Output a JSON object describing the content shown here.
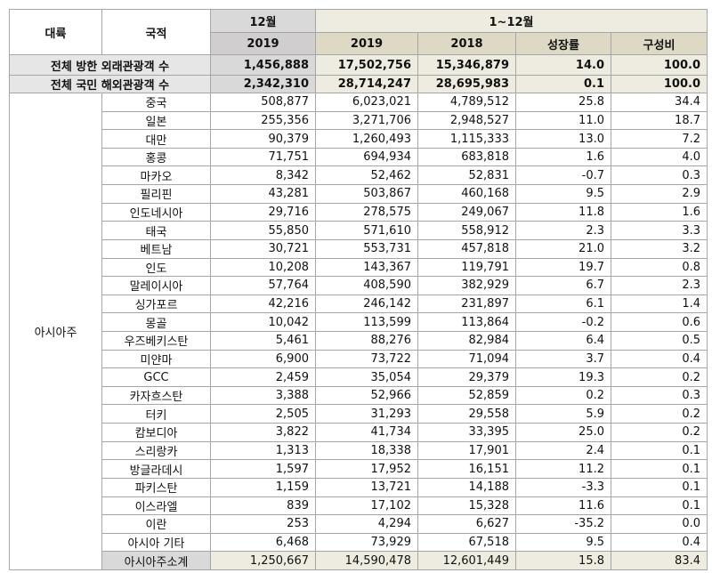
{
  "table": {
    "header": {
      "continent": "대륙",
      "country": "국적",
      "month": "12월",
      "month_year": "2019",
      "ytd": "1~12월",
      "ytd_cols": [
        "2019",
        "2018",
        "성장률",
        "구성비"
      ]
    },
    "totals": [
      [
        "전체 방한 외래관광객 수",
        "1,456,888",
        "17,502,756",
        "15,346,879",
        "14.0",
        "100.0"
      ],
      [
        "전체 국민 해외관광객 수",
        "2,342,310",
        "28,714,247",
        "28,695,983",
        "0.1",
        "100.0"
      ]
    ],
    "region": "아시아주",
    "rows": [
      [
        "중국",
        "508,877",
        "6,023,021",
        "4,789,512",
        "25.8",
        "34.4"
      ],
      [
        "일본",
        "255,356",
        "3,271,706",
        "2,948,527",
        "11.0",
        "18.7"
      ],
      [
        "대만",
        "90,379",
        "1,260,493",
        "1,115,333",
        "13.0",
        "7.2"
      ],
      [
        "홍콩",
        "71,751",
        "694,934",
        "683,818",
        "1.6",
        "4.0"
      ],
      [
        "마카오",
        "8,342",
        "52,462",
        "52,831",
        "-0.7",
        "0.3"
      ],
      [
        "필리핀",
        "43,281",
        "503,867",
        "460,168",
        "9.5",
        "2.9"
      ],
      [
        "인도네시아",
        "29,716",
        "278,575",
        "249,067",
        "11.8",
        "1.6"
      ],
      [
        "태국",
        "55,850",
        "571,610",
        "558,912",
        "2.3",
        "3.3"
      ],
      [
        "베트남",
        "30,721",
        "553,731",
        "457,818",
        "21.0",
        "3.2"
      ],
      [
        "인도",
        "10,208",
        "143,367",
        "119,791",
        "19.7",
        "0.8"
      ],
      [
        "말레이시아",
        "57,764",
        "408,590",
        "382,929",
        "6.7",
        "2.3"
      ],
      [
        "싱가포르",
        "42,216",
        "246,142",
        "231,897",
        "6.1",
        "1.4"
      ],
      [
        "몽골",
        "10,042",
        "113,599",
        "113,864",
        "-0.2",
        "0.6"
      ],
      [
        "우즈베키스탄",
        "5,461",
        "88,276",
        "82,984",
        "6.4",
        "0.5"
      ],
      [
        "미얀마",
        "6,900",
        "73,722",
        "71,094",
        "3.7",
        "0.4"
      ],
      [
        "GCC",
        "2,459",
        "35,054",
        "29,379",
        "19.3",
        "0.2"
      ],
      [
        "카자흐스탄",
        "3,388",
        "52,966",
        "52,859",
        "0.2",
        "0.3"
      ],
      [
        "터키",
        "2,505",
        "31,293",
        "29,558",
        "5.9",
        "0.2"
      ],
      [
        "캄보디아",
        "3,822",
        "41,734",
        "33,395",
        "25.0",
        "0.2"
      ],
      [
        "스리랑카",
        "1,313",
        "18,338",
        "17,901",
        "2.4",
        "0.1"
      ],
      [
        "방글라데시",
        "1,597",
        "17,952",
        "16,151",
        "11.2",
        "0.1"
      ],
      [
        "파키스탄",
        "1,159",
        "13,721",
        "14,188",
        "-3.3",
        "0.1"
      ],
      [
        "이스라엘",
        "839",
        "17,102",
        "15,328",
        "11.6",
        "0.1"
      ],
      [
        "이란",
        "253",
        "4,294",
        "6,627",
        "-35.2",
        "0.0"
      ],
      [
        "아시아 기타",
        "6,468",
        "73,929",
        "67,518",
        "9.5",
        "0.4"
      ]
    ],
    "subtotal": [
      "아시아주소계",
      "1,250,667",
      "14,590,478",
      "12,601,449",
      "15.8",
      "83.4"
    ]
  }
}
